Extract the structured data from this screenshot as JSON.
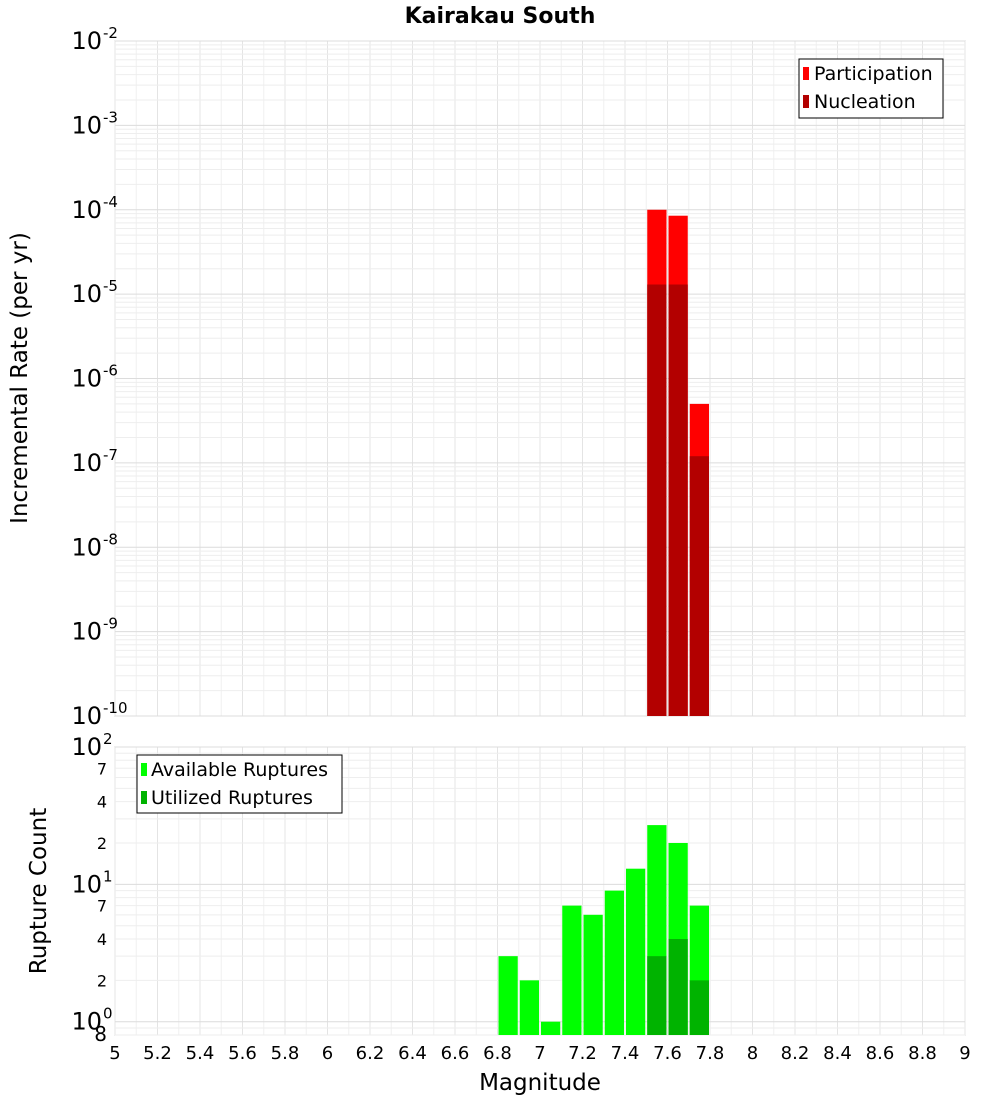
{
  "chart_data": [
    {
      "type": "bar",
      "title": "Kairakau South",
      "ylabel": "Incremental Rate (per yr)",
      "xlabel": "",
      "yscale": "log",
      "ylim": [
        1e-10,
        0.01
      ],
      "xlim": [
        5,
        9
      ],
      "bin_width": 0.1,
      "grid": true,
      "legend_position": "top-right",
      "y_tick_labels": [
        {
          "value": 0.01,
          "base": "10",
          "exp": "-2"
        },
        {
          "value": 0.001,
          "base": "10",
          "exp": "-3"
        },
        {
          "value": 0.0001,
          "base": "10",
          "exp": "-4"
        },
        {
          "value": 1e-05,
          "base": "10",
          "exp": "-5"
        },
        {
          "value": 1e-06,
          "base": "10",
          "exp": "-6"
        },
        {
          "value": 1e-07,
          "base": "10",
          "exp": "-7"
        },
        {
          "value": 1e-08,
          "base": "10",
          "exp": "-8"
        },
        {
          "value": 1e-09,
          "base": "10",
          "exp": "-9"
        },
        {
          "value": 1e-10,
          "base": "10",
          "exp": "-10"
        }
      ],
      "series": [
        {
          "name": "Participation",
          "color": "#ff0000",
          "x": [
            7.55,
            7.65,
            7.75
          ],
          "values": [
            0.0001,
            8.5e-05,
            5e-07
          ]
        },
        {
          "name": "Nucleation",
          "color": "#b30000",
          "x": [
            7.55,
            7.65,
            7.75
          ],
          "values": [
            1.3e-05,
            1.3e-05,
            1.2e-07
          ]
        }
      ]
    },
    {
      "type": "bar",
      "title": "",
      "ylabel": "Rupture Count",
      "xlabel": "Magnitude",
      "yscale": "log",
      "ylim": [
        0.8,
        100
      ],
      "xlim": [
        5,
        9
      ],
      "bin_width": 0.1,
      "grid": true,
      "legend_position": "top-left",
      "x_tick_labels": [
        "5",
        "5.2",
        "5.4",
        "5.6",
        "5.8",
        "6",
        "6.2",
        "6.4",
        "6.6",
        "6.8",
        "7",
        "7.2",
        "7.4",
        "7.6",
        "7.8",
        "8",
        "8.2",
        "8.4",
        "8.6",
        "8.8",
        "9"
      ],
      "y_tick_labels": [
        {
          "value": 100,
          "base": "10",
          "exp": "2"
        },
        {
          "value": 70,
          "base": "7",
          "exp": ""
        },
        {
          "value": 40,
          "base": "4",
          "exp": ""
        },
        {
          "value": 20,
          "base": "2",
          "exp": ""
        },
        {
          "value": 10,
          "base": "10",
          "exp": "1"
        },
        {
          "value": 7,
          "base": "7",
          "exp": ""
        },
        {
          "value": 4,
          "base": "4",
          "exp": ""
        },
        {
          "value": 2,
          "base": "2",
          "exp": ""
        },
        {
          "value": 1,
          "base": "10",
          "exp": "0"
        },
        {
          "value": 0.8,
          "base": "8",
          "exp": ""
        }
      ],
      "series": [
        {
          "name": "Available Ruptures",
          "color": "#00ff00",
          "x": [
            6.85,
            6.95,
            7.05,
            7.15,
            7.25,
            7.35,
            7.45,
            7.55,
            7.65,
            7.75
          ],
          "values": [
            3,
            2,
            1,
            7,
            6,
            9,
            13,
            27,
            20,
            7
          ]
        },
        {
          "name": "Utilized Ruptures",
          "color": "#00b300",
          "x": [
            7.55,
            7.65,
            7.75
          ],
          "values": [
            3,
            4,
            2
          ]
        }
      ]
    }
  ]
}
